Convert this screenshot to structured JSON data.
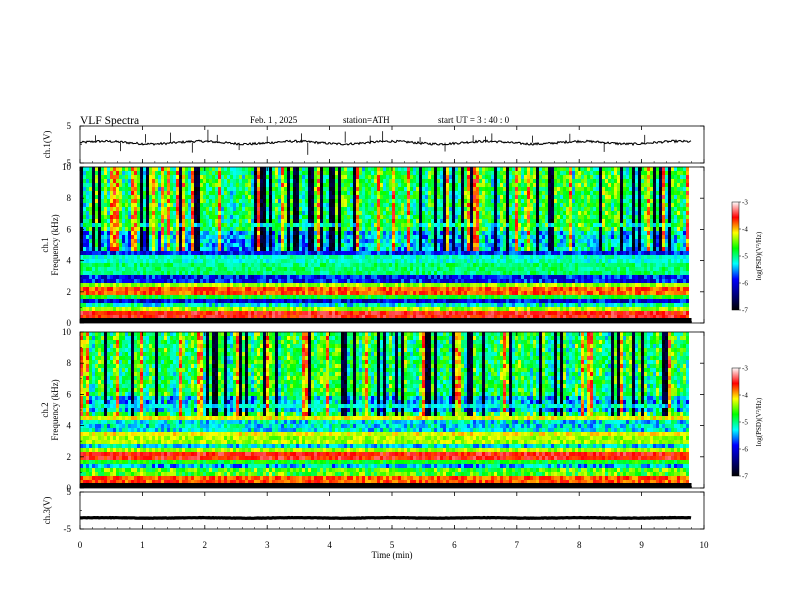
{
  "header": {
    "title": "VLF  Spectra",
    "date": "Feb. 1  , 2025",
    "station": "station=ATH",
    "start": "start  UT  =   3  : 40 : 0"
  },
  "colorbar": {
    "label": "log(PSD)(V²/Hz)",
    "ticks": [
      "-3",
      "-4",
      "-5",
      "-6",
      "-7"
    ],
    "colors": [
      "#ffffff",
      "#ff0000",
      "#ffff00",
      "#00ff00",
      "#00ffff",
      "#0000ff",
      "#00007f",
      "#000000"
    ]
  },
  "chart_data": [
    {
      "type": "line",
      "name": "ch1-waveform",
      "ylabel": "ch.1(V)",
      "ylim": [
        -5,
        5
      ],
      "yticks": [
        "5",
        "-5"
      ],
      "xlim": [
        0,
        10
      ],
      "data_end_min": 9.8,
      "baseline_v": 0.5,
      "noise_v": 0.6,
      "spikes": [
        {
          "x": 0.25,
          "v": 2.5
        },
        {
          "x": 0.65,
          "v": -1.8
        },
        {
          "x": 1.05,
          "v": 2.8
        },
        {
          "x": 1.45,
          "v": 3.2
        },
        {
          "x": 1.8,
          "v": -2.2
        },
        {
          "x": 2.05,
          "v": 4.0
        },
        {
          "x": 2.2,
          "v": 2.6
        },
        {
          "x": 2.55,
          "v": -1.5
        },
        {
          "x": 3.0,
          "v": 2.2
        },
        {
          "x": 3.55,
          "v": 3.0
        },
        {
          "x": 3.65,
          "v": -2.8
        },
        {
          "x": 4.25,
          "v": 3.5
        },
        {
          "x": 4.65,
          "v": 2.4
        },
        {
          "x": 4.85,
          "v": 3.6
        },
        {
          "x": 5.45,
          "v": 2.0
        },
        {
          "x": 5.85,
          "v": -1.9
        },
        {
          "x": 6.3,
          "v": 2.5
        },
        {
          "x": 6.5,
          "v": 2.2
        },
        {
          "x": 6.6,
          "v": 3.0
        },
        {
          "x": 7.25,
          "v": 2.4
        },
        {
          "x": 7.85,
          "v": 2.9
        },
        {
          "x": 8.4,
          "v": -2.0
        },
        {
          "x": 9.05,
          "v": 2.6
        }
      ]
    },
    {
      "type": "heatmap",
      "name": "ch1-spectrogram",
      "ylabel": "ch.1\nFrequency (kHz)",
      "ylim": [
        0,
        10
      ],
      "yticks": [
        "0",
        "2",
        "4",
        "6",
        "8",
        "10"
      ],
      "xlim": [
        0,
        10
      ],
      "data_end_min": 9.8,
      "bands_khz": [
        {
          "f": 0.5,
          "level": 0.9
        },
        {
          "f": 0.9,
          "level": 0.7
        },
        {
          "f": 1.7,
          "level": 0.6
        },
        {
          "f": 2.1,
          "level": 0.85
        },
        {
          "f": 2.35,
          "level": 0.7
        },
        {
          "f": 3.3,
          "level": 0.55
        },
        {
          "f": 3.7,
          "level": 0.55
        },
        {
          "f": 4.1,
          "level": 0.5
        },
        {
          "f": 6.3,
          "level": 0.45
        }
      ]
    },
    {
      "type": "heatmap",
      "name": "ch2-spectrogram",
      "ylabel": "ch.2\nFrequency (kHz)",
      "ylim": [
        0,
        10
      ],
      "yticks": [
        "0",
        "2",
        "4",
        "6",
        "8",
        "10"
      ],
      "xlim": [
        0,
        10
      ],
      "data_end_min": 9.8,
      "bands_khz": [
        {
          "f": 0.5,
          "level": 0.85
        },
        {
          "f": 1.7,
          "level": 0.6
        },
        {
          "f": 2.0,
          "level": 0.9
        },
        {
          "f": 2.5,
          "level": 0.7
        },
        {
          "f": 3.1,
          "level": 0.7
        },
        {
          "f": 3.5,
          "level": 0.75
        },
        {
          "f": 4.5,
          "level": 0.75
        },
        {
          "f": 5.3,
          "level": 0.45
        }
      ]
    },
    {
      "type": "line",
      "name": "ch3-waveform",
      "ylabel": "ch.3(V)",
      "ylim": [
        -5,
        5
      ],
      "yticks": [
        "5",
        "-5"
      ],
      "xlim": [
        0,
        10
      ],
      "data_end_min": 9.8,
      "baseline_v": -2.0,
      "noise_v": 0.1
    }
  ],
  "xaxis": {
    "label": "Time  (min)",
    "ticks": [
      "0",
      "1",
      "2",
      "3",
      "4",
      "5",
      "6",
      "7",
      "8",
      "9",
      "10"
    ]
  }
}
